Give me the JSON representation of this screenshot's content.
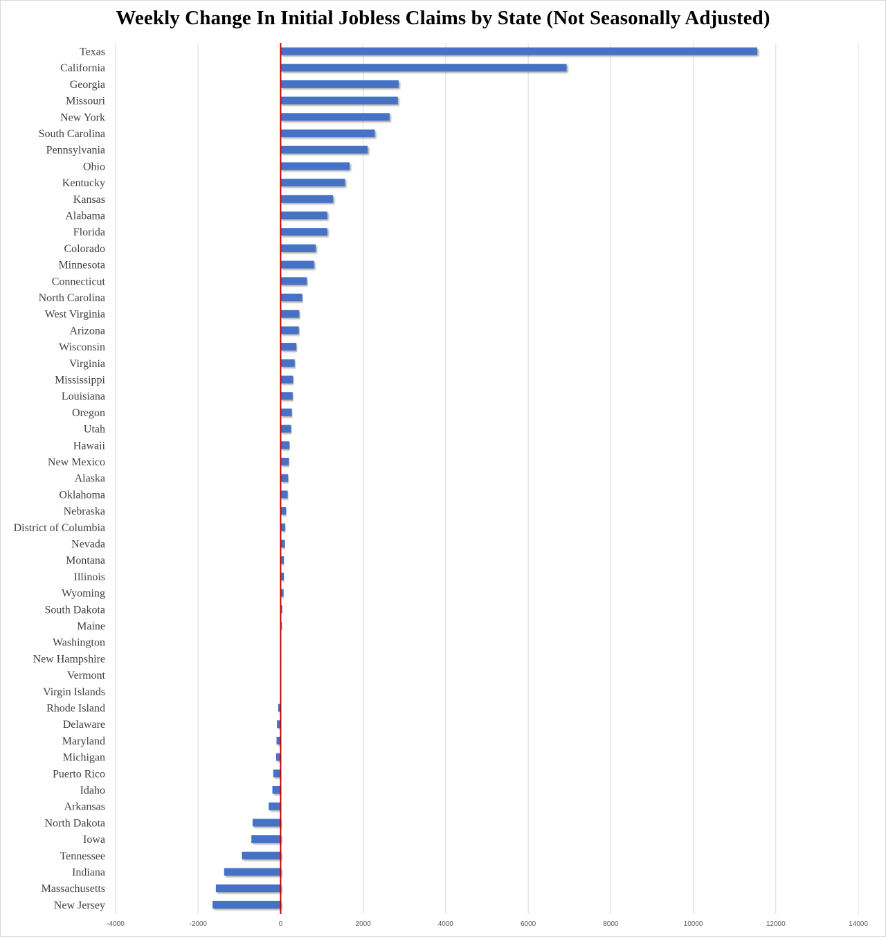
{
  "chart_data": {
    "type": "bar",
    "orientation": "horizontal",
    "title": "Weekly Change In Initial Jobless Claims by State (Not Seasonally Adjusted)",
    "xlabel": "",
    "ylabel": "",
    "xlim": [
      -4000,
      14000
    ],
    "xticks": [
      -4000,
      -2000,
      0,
      2000,
      4000,
      6000,
      8000,
      10000,
      12000,
      14000
    ],
    "grid": "vertical",
    "legend": "none",
    "bar_color": "#4472C4",
    "zero_line_color": "#C00000",
    "grid_color": "#D9D9D9",
    "categories": [
      "Texas",
      "California",
      "Georgia",
      "Missouri",
      "New York",
      "South Carolina",
      "Pennsylvania",
      "Ohio",
      "Kentucky",
      "Kansas",
      "Alabama",
      "Florida",
      "Colorado",
      "Minnesota",
      "Connecticut",
      "North Carolina",
      "West Virginia",
      "Arizona",
      "Wisconsin",
      "Virginia",
      "Mississippi",
      "Louisiana",
      "Oregon",
      "Utah",
      "Hawaii",
      "New Mexico",
      "Alaska",
      "Oklahoma",
      "Nebraska",
      "District of Columbia",
      "Nevada",
      "Montana",
      "Illinois",
      "Wyoming",
      "South Dakota",
      "Maine",
      "Washington",
      "New Hampshire",
      "Vermont",
      "Virgin Islands",
      "Rhode Island",
      "Delaware",
      "Maryland",
      "Michigan",
      "Puerto Rico",
      "Idaho",
      "Arkansas",
      "North Dakota",
      "Iowa",
      "Tennessee",
      "Indiana",
      "Massachusetts",
      "New Jersey"
    ],
    "values": [
      11550,
      6930,
      2860,
      2840,
      2640,
      2280,
      2110,
      1670,
      1560,
      1270,
      1130,
      1130,
      850,
      810,
      630,
      520,
      450,
      440,
      380,
      340,
      300,
      290,
      270,
      250,
      210,
      200,
      180,
      170,
      130,
      110,
      100,
      80,
      80,
      70,
      40,
      30,
      10,
      10,
      0,
      0,
      -60,
      -90,
      -100,
      -110,
      -180,
      -200,
      -290,
      -680,
      -710,
      -940,
      -1370,
      -1570,
      -1650
    ]
  }
}
